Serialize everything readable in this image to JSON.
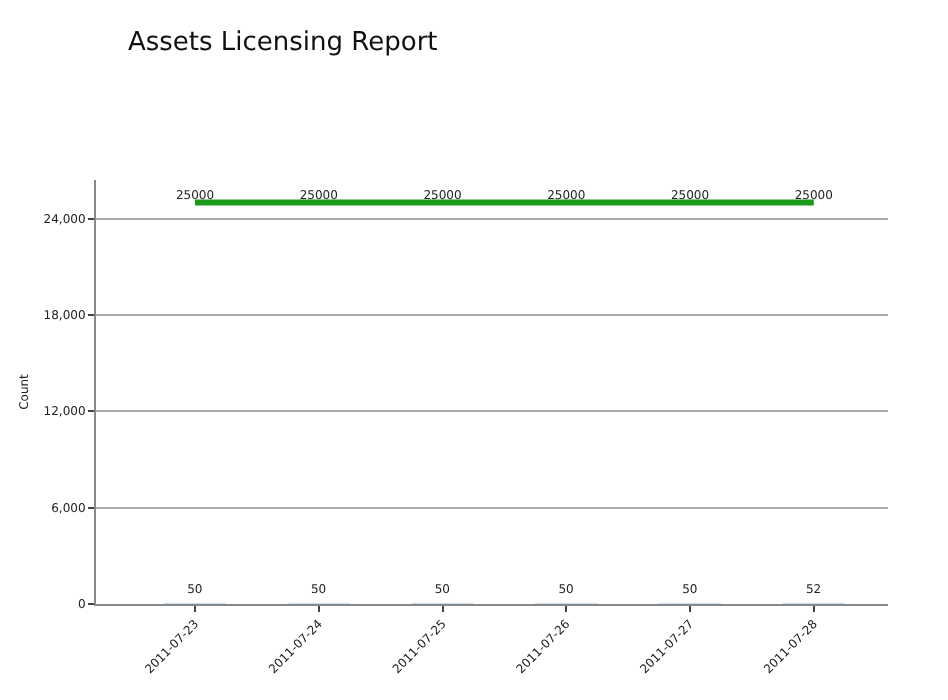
{
  "chart_data": {
    "type": "bar",
    "title": "Assets Licensing Report",
    "ylabel": "Count",
    "categories": [
      "2011-07-23",
      "2011-07-24",
      "2011-07-25",
      "2011-07-26",
      "2011-07-27",
      "2011-07-28"
    ],
    "series": [
      {
        "color": "#1f8ac0",
        "values": [
          50,
          50,
          50,
          50,
          50,
          52
        ]
      },
      {
        "type": "line",
        "color": "#1a9a1a",
        "values": [
          25000,
          25000,
          25000,
          25000,
          25000,
          25000
        ]
      }
    ],
    "ylim": [
      0,
      26400
    ],
    "yticks": [
      0,
      {
        "value": 6000,
        "label": "6,000"
      },
      {
        "value": 12000,
        "label": "12,000"
      },
      {
        "value": 18000,
        "label": "18,000"
      },
      {
        "value": 24000,
        "label": "24,000"
      }
    ],
    "data_labels": true,
    "grid": "y"
  }
}
